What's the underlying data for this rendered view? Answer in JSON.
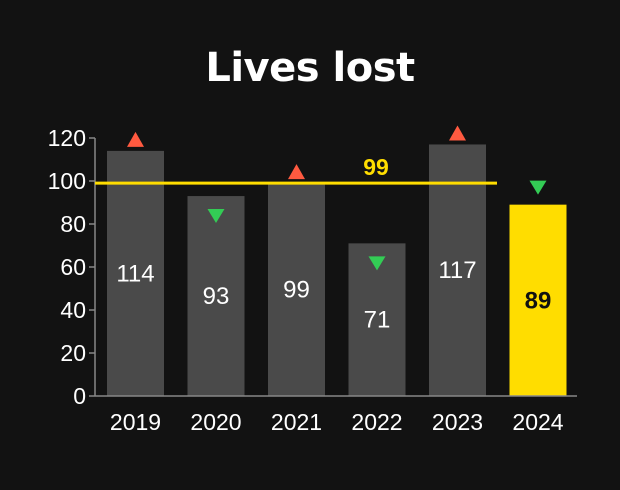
{
  "title": "Lives lost",
  "colors": {
    "background": "#121212",
    "bar": "#4a4a4a",
    "highlight": "#ffdd00",
    "axis": "#888888",
    "up": "#ff5a40",
    "down": "#33cc55",
    "text": "#ffffff",
    "highlight_text": "#111111"
  },
  "chart_data": {
    "type": "bar",
    "title": "Lives lost",
    "xlabel": "",
    "ylabel": "",
    "ylim": [
      0,
      120
    ],
    "yticks": [
      "0",
      "20",
      "40",
      "60",
      "80",
      "100",
      "120"
    ],
    "categories": [
      "2019",
      "2020",
      "2021",
      "2022",
      "2023",
      "2024"
    ],
    "values": [
      114,
      93,
      99,
      71,
      117,
      89
    ],
    "data_labels": [
      "114",
      "93",
      "99",
      "71",
      "117",
      "89"
    ],
    "highlight_category": "2024",
    "trend_markers": [
      "up",
      "down",
      "up",
      "down",
      "up",
      "down"
    ],
    "reference_line": {
      "value": 99,
      "label": "99"
    },
    "grid": false,
    "legend": "none"
  }
}
